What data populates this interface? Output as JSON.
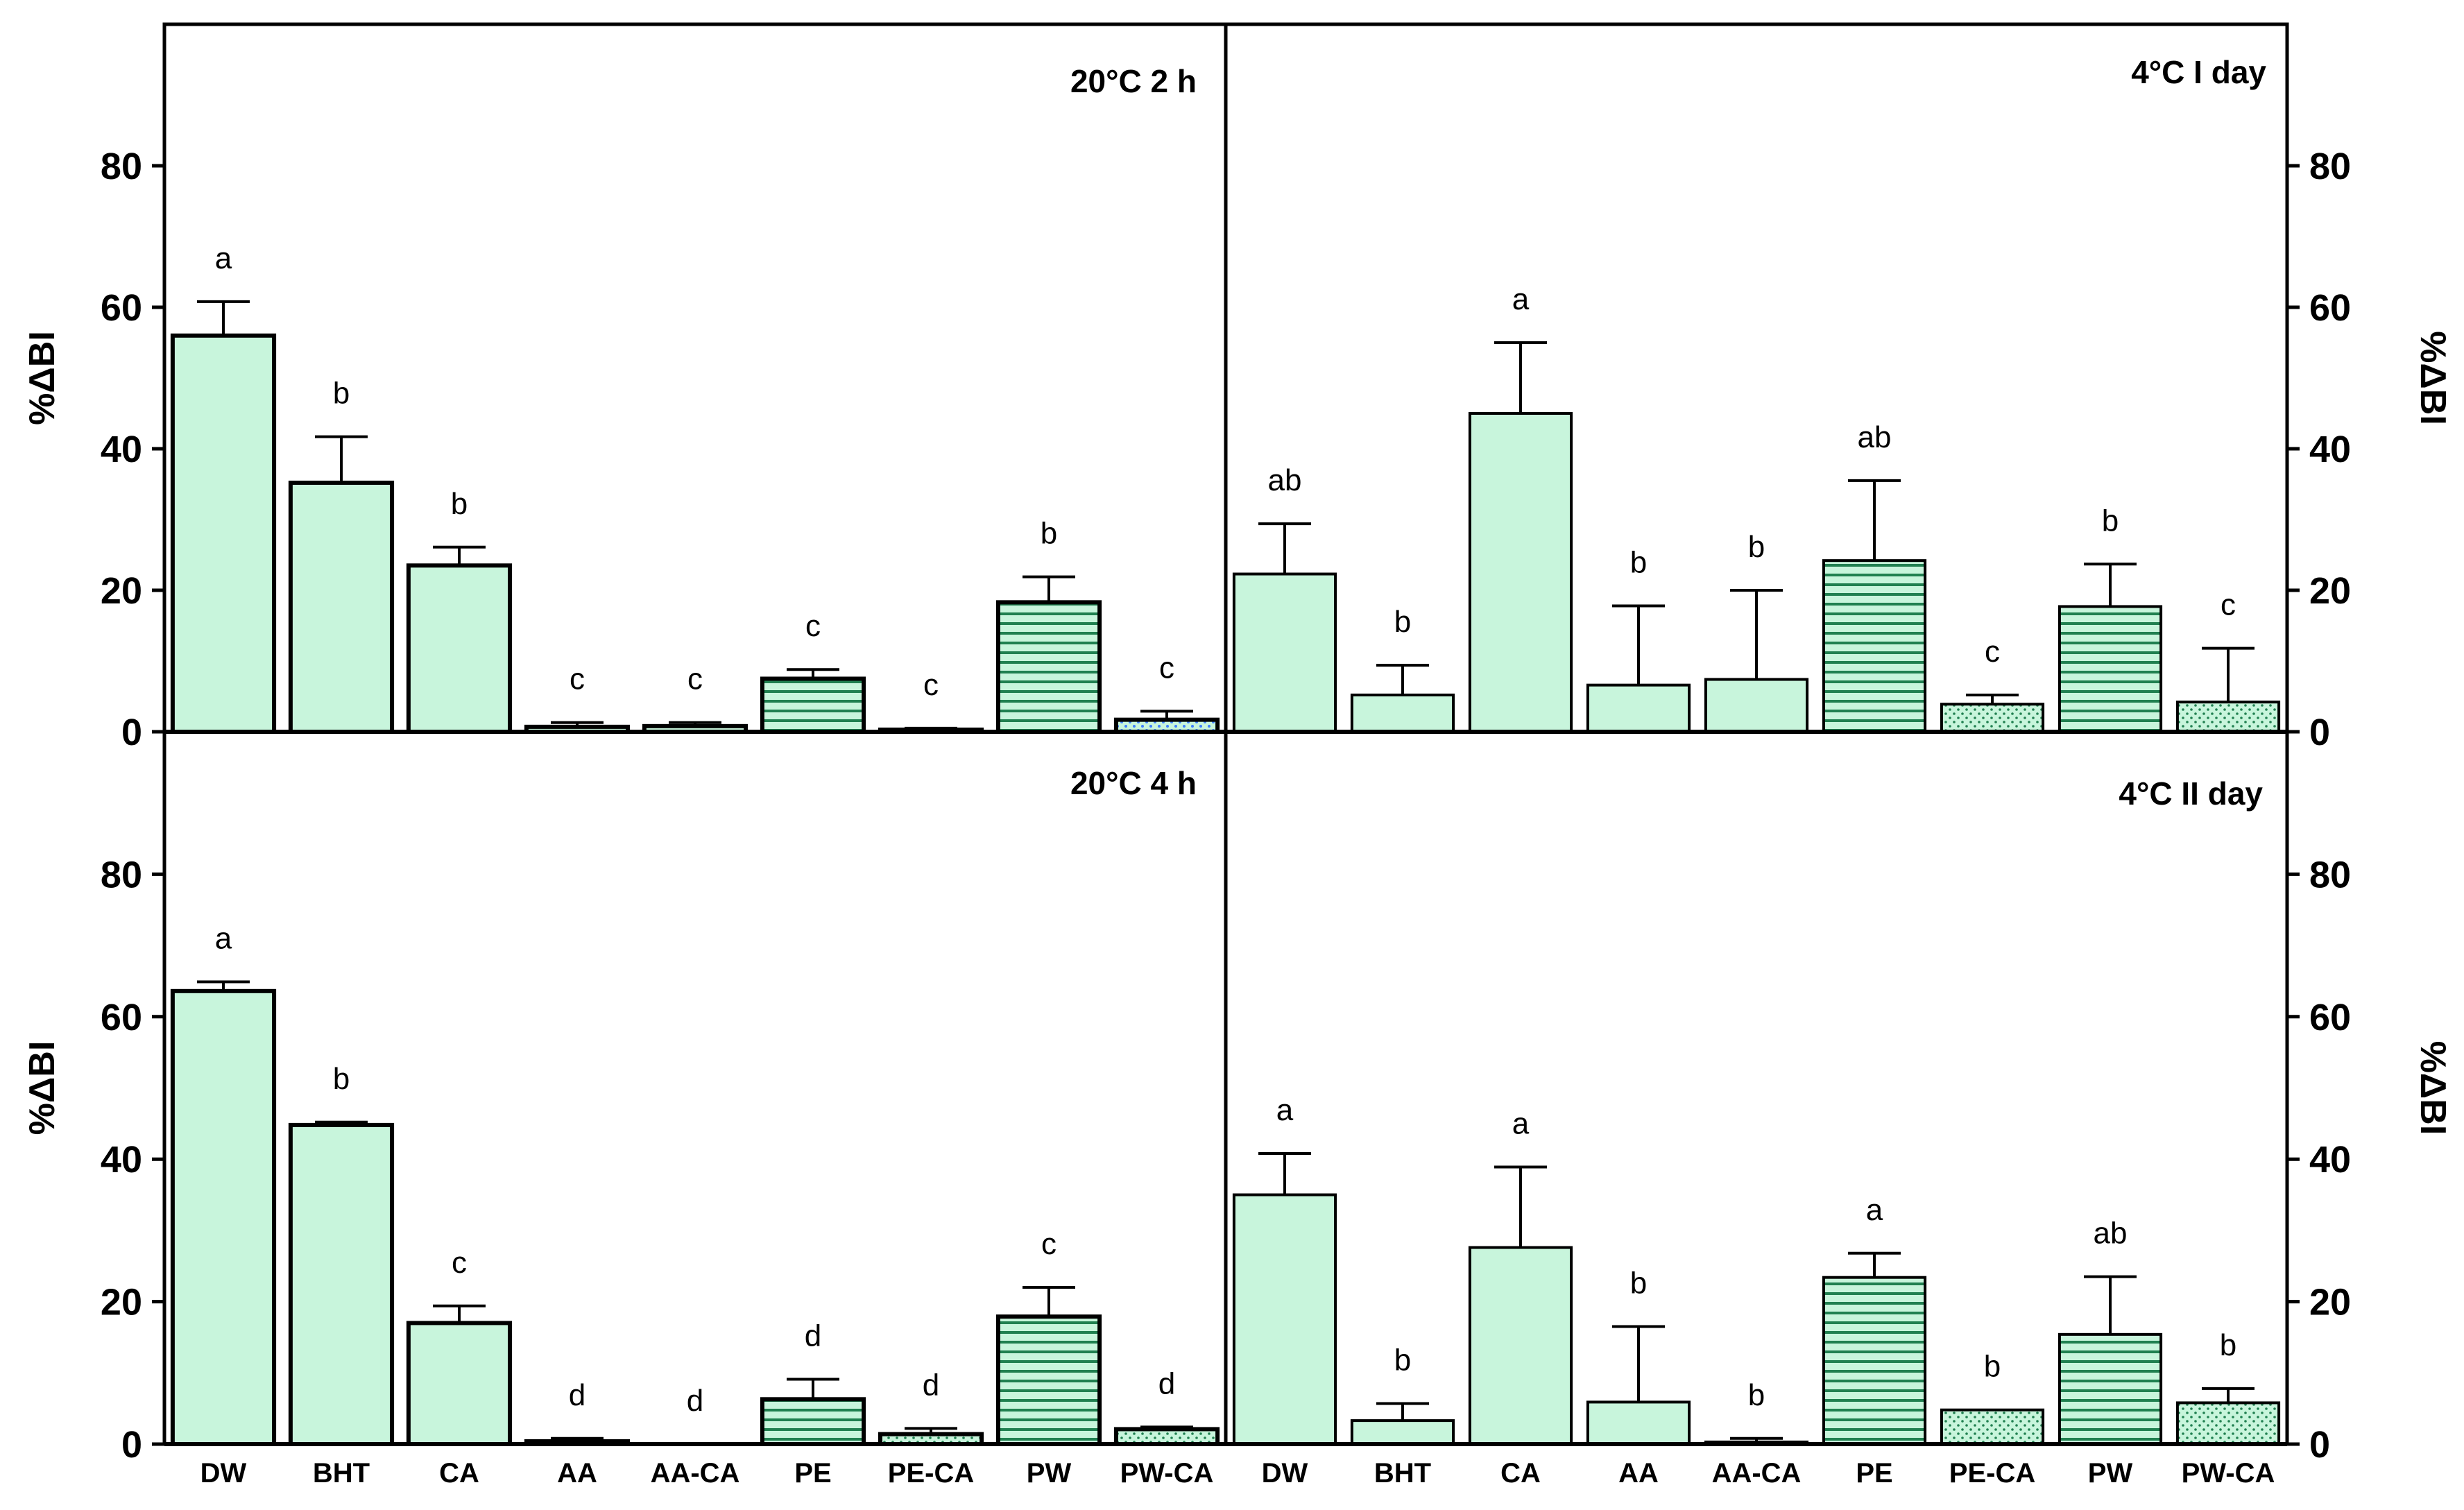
{
  "figure": {
    "y_axis_label": "%ΔBI",
    "y_ticks": [
      0,
      20,
      40,
      60,
      80
    ],
    "ylim": [
      0,
      100
    ],
    "categories": [
      "DW",
      "BHT",
      "CA",
      "AA",
      "AA-CA",
      "PE",
      "PE-CA",
      "PW",
      "PW-CA"
    ],
    "bar_fill": "#c8f5dc",
    "hatch_color": "#208050",
    "special_fill_color": "#3f7fff"
  },
  "chart_data": [
    {
      "type": "bar",
      "title": "20°C 2 h",
      "categories": [
        "DW",
        "BHT",
        "CA",
        "AA",
        "AA-CA",
        "PE",
        "PE-CA",
        "PW",
        "PW-CA"
      ],
      "values": [
        56,
        35.2,
        23.5,
        0.7,
        0.8,
        7.5,
        0.3,
        18.3,
        1.7
      ],
      "errors": [
        4.8,
        6.5,
        2.6,
        0.6,
        0.5,
        1.3,
        0.2,
        3.6,
        1.2
      ],
      "letters": [
        "a",
        "b",
        "b",
        "c",
        "c",
        "c",
        "c",
        "b",
        "c"
      ],
      "xlabel": "",
      "ylabel": "%ΔBI",
      "ylim": [
        0,
        100
      ]
    },
    {
      "type": "bar",
      "title": "4°C I day",
      "categories": [
        "DW",
        "BHT",
        "CA",
        "AA",
        "AA-CA",
        "PE",
        "PE-CA",
        "PW",
        "PW-CA"
      ],
      "values": [
        22.3,
        5.2,
        45,
        6.6,
        7.4,
        24.2,
        3.9,
        17.7,
        4.2
      ],
      "errors": [
        7.1,
        4.2,
        10,
        11.2,
        12.6,
        11.3,
        1.3,
        6,
        7.6
      ],
      "letters": [
        "ab",
        "b",
        "a",
        "b",
        "b",
        "ab",
        "c",
        "b",
        "c"
      ],
      "xlabel": "",
      "ylabel": "%ΔBI",
      "ylim": [
        0,
        100
      ]
    },
    {
      "type": "bar",
      "title": "20°C 4 h",
      "categories": [
        "DW",
        "BHT",
        "CA",
        "AA",
        "AA-CA",
        "PE",
        "PE-CA",
        "PW",
        "PW-CA"
      ],
      "values": [
        63.6,
        44.8,
        17,
        0.4,
        0,
        6.3,
        1.4,
        17.9,
        2.1
      ],
      "errors": [
        1.3,
        0.4,
        2.4,
        0.4,
        0,
        2.8,
        0.8,
        4.1,
        0.3
      ],
      "letters": [
        "a",
        "b",
        "c",
        "d",
        "d",
        "d",
        "d",
        "c",
        "d"
      ],
      "xlabel": "",
      "ylabel": "%ΔBI",
      "ylim": [
        0,
        100
      ]
    },
    {
      "type": "bar",
      "title": "4°C II day",
      "categories": [
        "DW",
        "BHT",
        "CA",
        "AA",
        "AA-CA",
        "PE",
        "PE-CA",
        "PW",
        "PW-CA"
      ],
      "values": [
        35,
        3.3,
        27.6,
        5.9,
        0.3,
        23.4,
        4.8,
        15.4,
        5.8
      ],
      "errors": [
        5.8,
        2.4,
        11.3,
        10.6,
        0.5,
        3.4,
        0,
        8.1,
        2
      ],
      "letters": [
        "a",
        "b",
        "a",
        "b",
        "b",
        "a",
        "b",
        "ab",
        "b"
      ],
      "xlabel": "",
      "ylabel": "%ΔBI",
      "ylim": [
        0,
        100
      ]
    }
  ]
}
